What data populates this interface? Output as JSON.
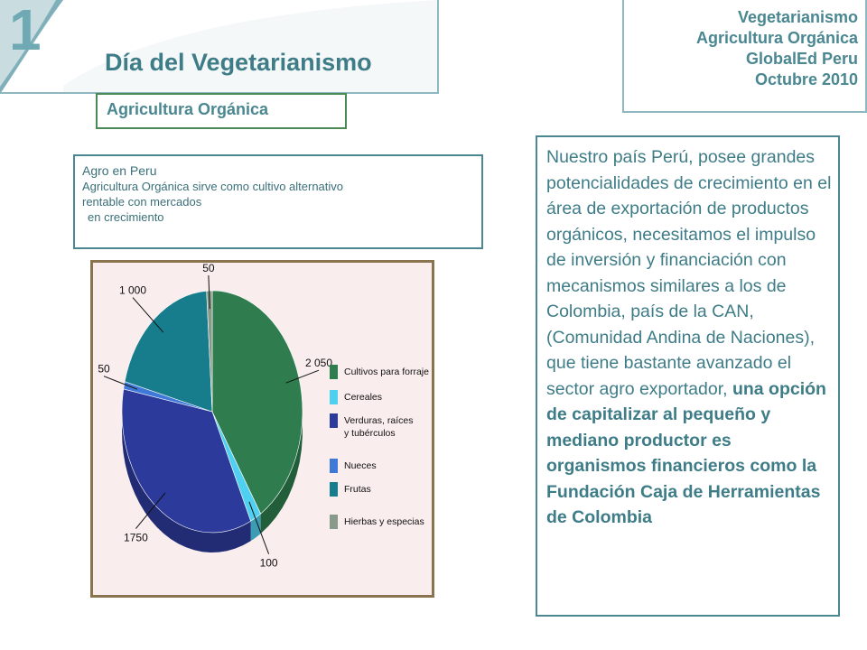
{
  "header": {
    "slide_number": "1",
    "title": "Día  del Vegetarianismo"
  },
  "info": {
    "lines": [
      "Vegetarianismo",
      "Agricultura Orgánica",
      "GlobalEd Peru",
      "Octubre 2010"
    ]
  },
  "subtitle": "Agricultura Orgánica",
  "agro": {
    "title": "Agro en Peru",
    "line1": "Agricultura Orgánica sirve como cultivo alternativo",
    "line2": "rentable con mercados",
    "line3": "en crecimiento"
  },
  "chart_data": {
    "type": "pie",
    "categories": [
      "Cultivos  para  forraje",
      "Cereales",
      "Verduras, raíces y tubérculos",
      "Nueces",
      "Frutas",
      "Hierbas y especias"
    ],
    "values": [
      2050,
      100,
      1750,
      50,
      1000,
      50
    ],
    "labels": [
      "2 050",
      "100",
      "1750",
      "50",
      "1 000",
      "50"
    ],
    "colors": [
      "#2f7d4f",
      "#4fd0f0",
      "#2c3a9c",
      "#3f79d8",
      "#177d8c",
      "#8a9a8a"
    ],
    "legend_position": "right"
  },
  "paragraph": {
    "normal": "Nuestro país Perú, posee grandes potencialidades  de crecimiento en el área de exportación de productos orgánicos, necesitamos el impulso de inversión y financiación con mecanismos similares a los de Colombia, país de la CAN, (Comunidad Andina de Naciones), que tiene bastante avanzado el sector agro exportador, ",
    "bold": "una opción  de capitalizar al pequeño y mediano productor es organismos financieros como  la Fundación Caja de Herramientas de Colombia"
  }
}
